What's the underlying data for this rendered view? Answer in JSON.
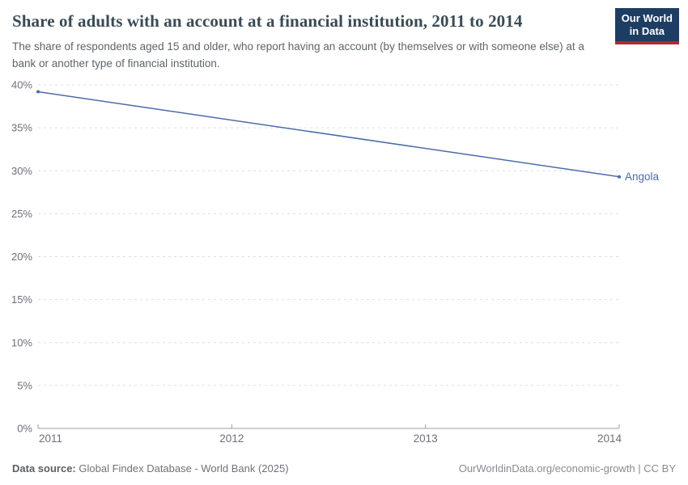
{
  "header": {
    "title": "Share of adults with an account at a financial institution, 2011 to 2014",
    "subtitle": "The share of respondents aged 15 and older, who report having an account (by themselves or with someone else) at a bank or another type of financial institution.",
    "logo": {
      "line1": "Our World",
      "line2": "in Data",
      "bg_color": "#1d3d63",
      "accent_color": "#b02a35"
    }
  },
  "chart_data": {
    "type": "line",
    "title": "Share of adults with an account at a financial institution, 2011 to 2014",
    "xlabel": "",
    "ylabel": "",
    "xlim": [
      2011,
      2014
    ],
    "ylim": [
      0,
      40
    ],
    "x_ticks": [
      2011,
      2012,
      2013,
      2014
    ],
    "y_ticks": [
      0,
      5,
      10,
      15,
      20,
      25,
      30,
      35,
      40
    ],
    "y_tick_suffix": "%",
    "grid": "dashed-horizontal",
    "legend_position": "end-of-line-label",
    "series": [
      {
        "name": "Angola",
        "color": "#4c6ba9",
        "x": [
          2011,
          2014
        ],
        "values": [
          39.2,
          29.3
        ]
      }
    ],
    "colors": {
      "gridline": "#dcdee0",
      "axis": "#9aa0a5",
      "tick_label": "#6e7079"
    }
  },
  "footer": {
    "source_label": "Data source:",
    "source_value": "Global Findex Database - World Bank (2025)",
    "credit": "OurWorldinData.org/economic-growth | CC BY"
  }
}
